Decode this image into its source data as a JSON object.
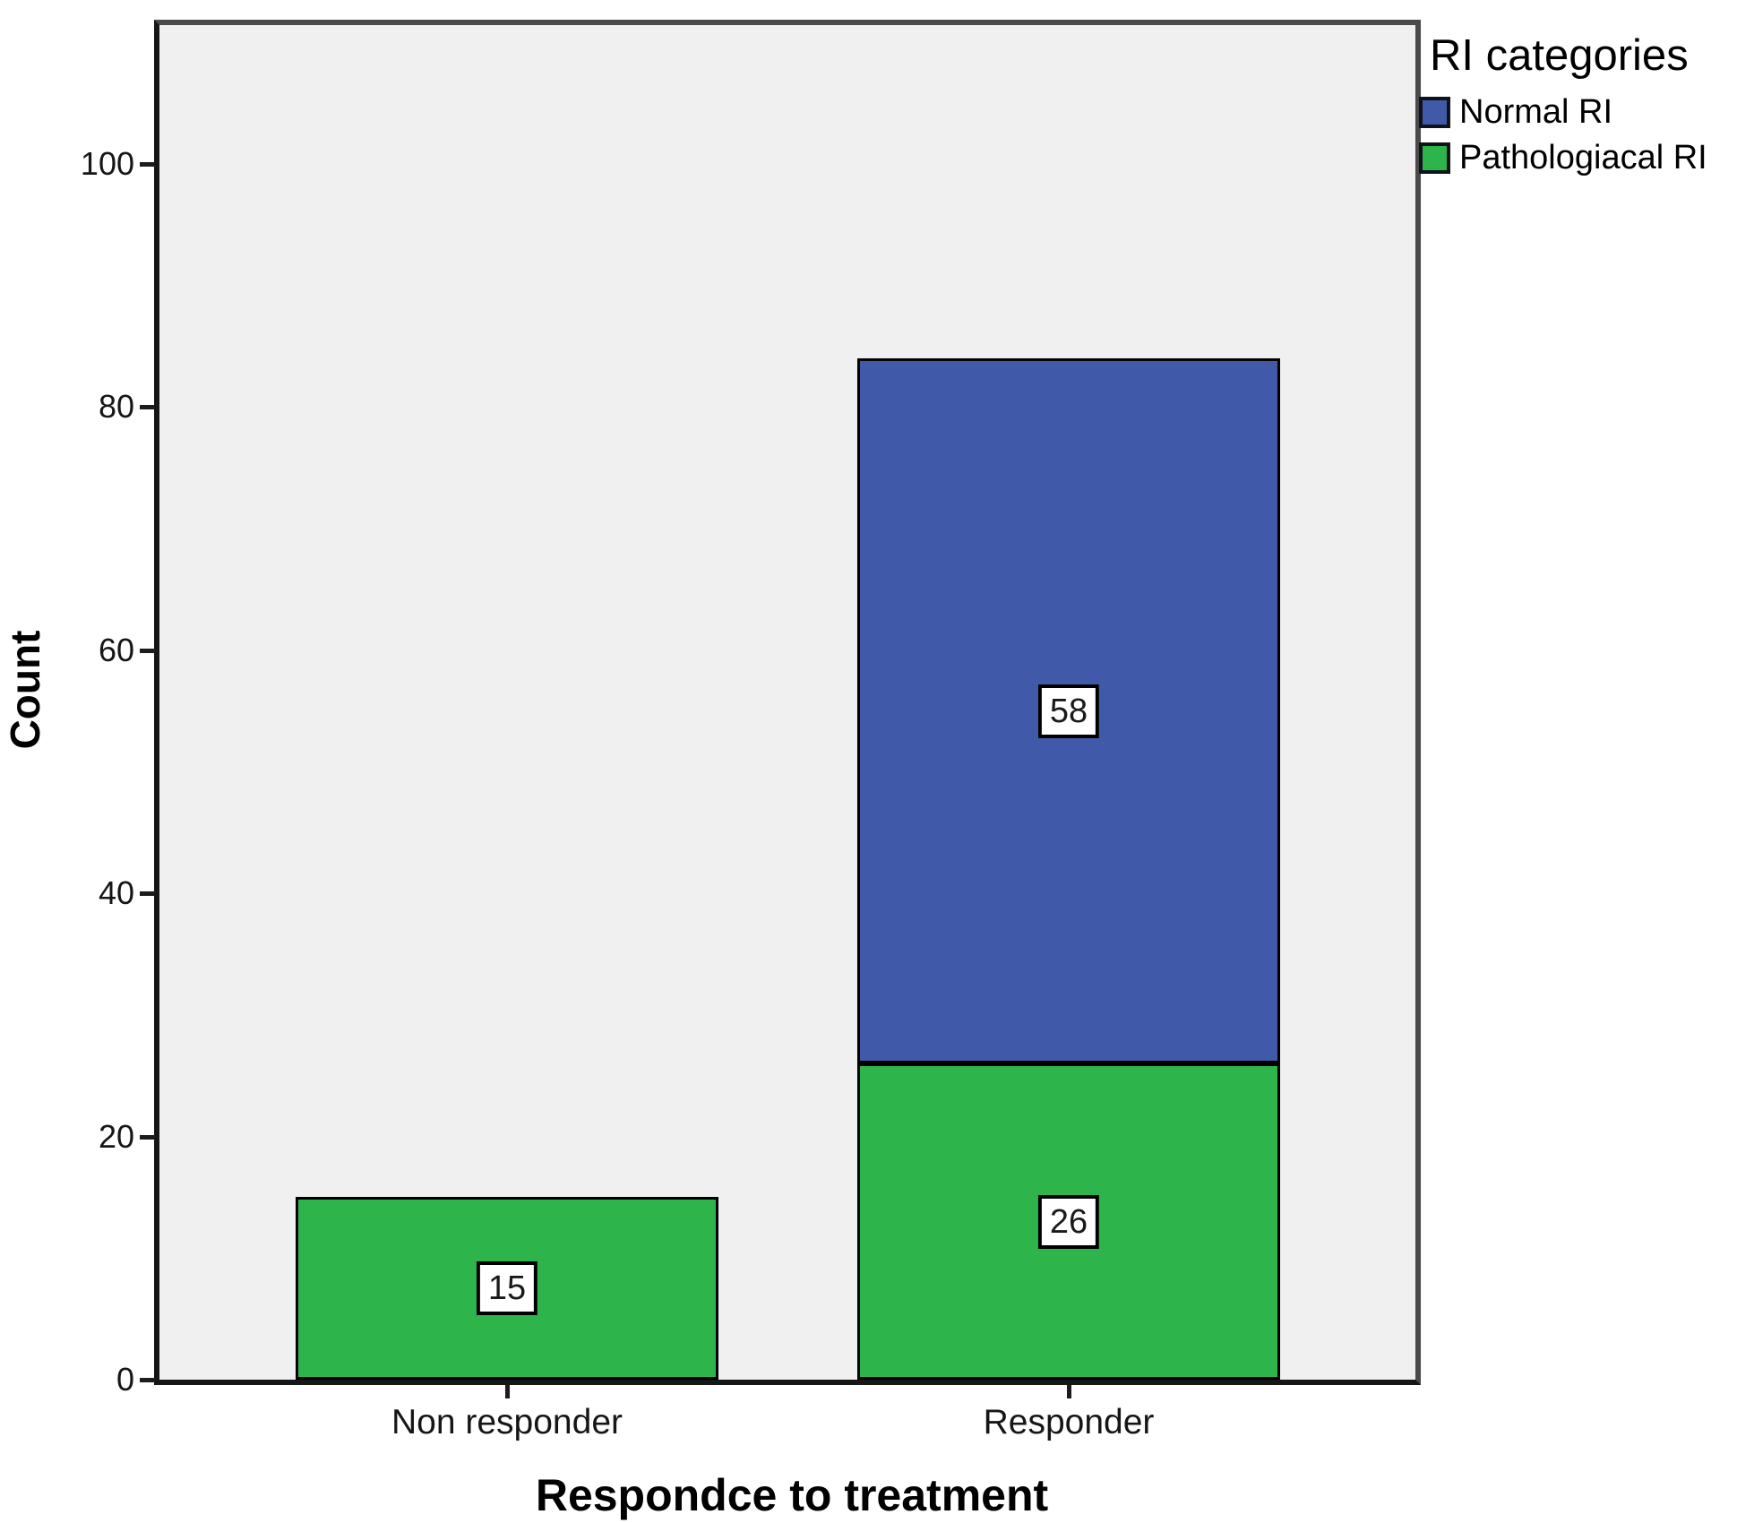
{
  "chart_data": {
    "type": "bar",
    "stacked": true,
    "title": "",
    "xlabel": "Respondce to treatment",
    "ylabel": "Count",
    "legend_title": "RI categories",
    "legend_position": "top-right-outside",
    "grid": false,
    "categories": [
      "Non responder",
      "Responder"
    ],
    "series": [
      {
        "name": "Normal RI",
        "color": "#4059A8",
        "values": [
          0,
          58
        ]
      },
      {
        "name": "Pathologiacal RI",
        "color": "#2DB54B",
        "values": [
          15,
          26
        ]
      }
    ],
    "stack_order_note": "Pathologiacal RI (green) is the bottom segment; Normal RI (blue) stacks on top",
    "segment_labels": [
      "15",
      "58",
      "26"
    ],
    "totals": [
      15,
      84
    ],
    "ylim": [
      0,
      111
    ],
    "yticks": [
      0,
      20,
      40,
      60,
      80,
      100
    ]
  },
  "colors": {
    "plot_background": "#F0F0F0",
    "frame": "#4a4a4a",
    "axis": "#161616",
    "bar_border": "#000000",
    "label_box_background": "#ffffff"
  }
}
